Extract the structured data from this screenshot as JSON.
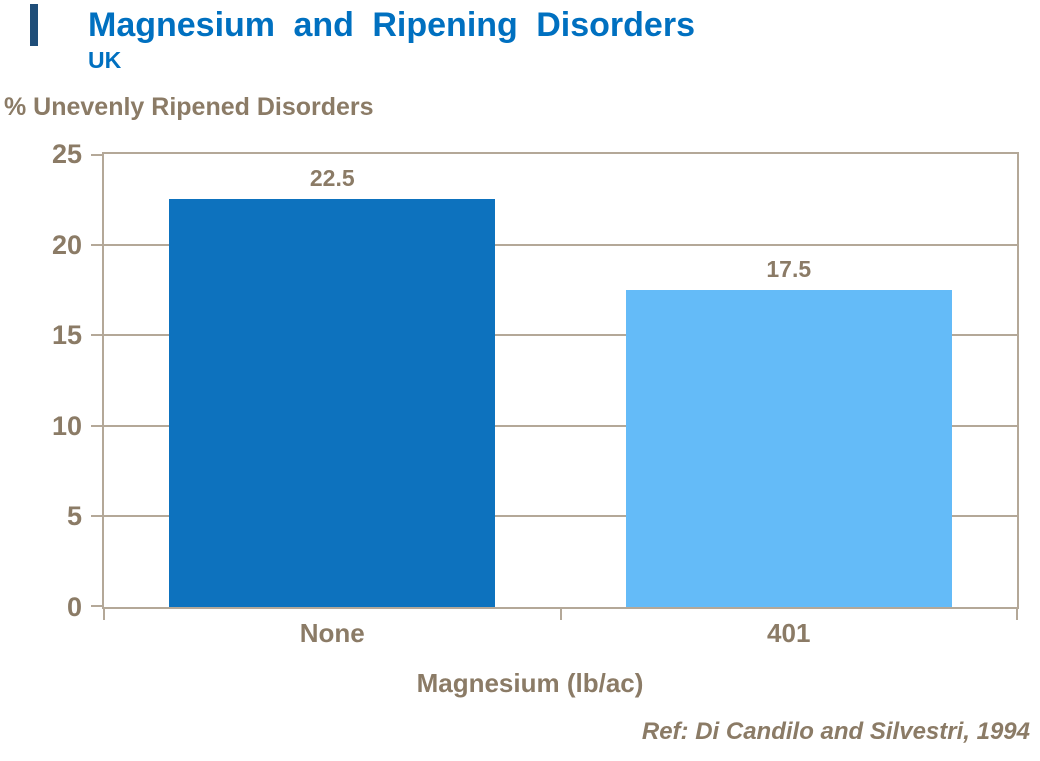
{
  "page": {
    "title": "Magnesium and Ripening Disorders",
    "subtitle": "UK",
    "y_axis_header": "% Unevenly Ripened Disorders",
    "x_axis_title": "Magnesium (lb/ac)",
    "reference": "Ref: Di Candilo and Silvestri, 1994"
  },
  "chart_data": {
    "type": "bar",
    "title": "Magnesium and Ripening Disorders",
    "subtitle": "UK",
    "categories": [
      "None",
      "401"
    ],
    "values": [
      22.5,
      17.5
    ],
    "value_labels": [
      "22.5",
      "17.5"
    ],
    "xlabel": "Magnesium (lb/ac)",
    "ylabel": "% Unevenly Ripened Disorders",
    "ylim": [
      0,
      25
    ],
    "yticks": [
      0,
      5,
      10,
      15,
      20,
      25
    ],
    "grid": "horizontal",
    "legend": "none",
    "bar_width_fraction": 0.715,
    "annotation": "Ref: Di Candilo and Silvestri, 1994"
  },
  "colors": {
    "accent_bar": "#1F4E79",
    "title_blue": "#0070C0",
    "text_taupe": "#8B7B66",
    "axis_line": "#B4A898",
    "bar_fills": [
      "#0D72BE",
      "#64BBF8"
    ]
  }
}
